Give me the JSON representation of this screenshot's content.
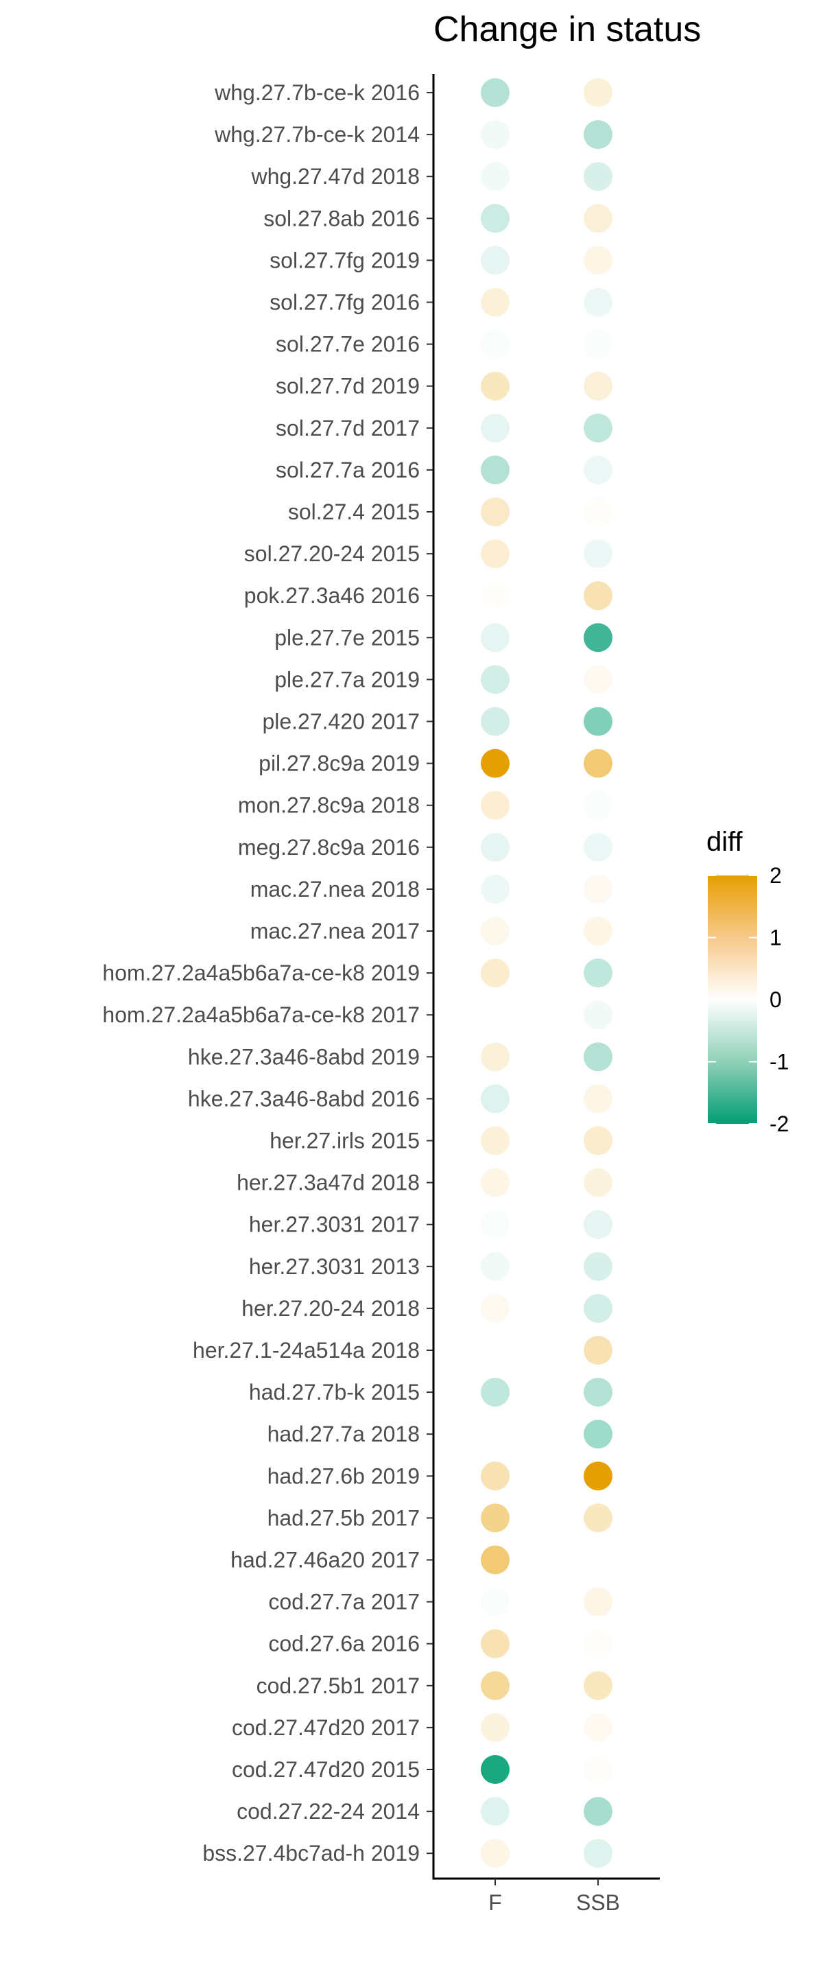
{
  "chart_data": {
    "type": "heatmap",
    "title": "Change in status",
    "xlabel": "",
    "ylabel": "",
    "columns": [
      "F",
      "SSB"
    ],
    "rows": [
      {
        "label": "whg.27.7b-ce-k 2016",
        "F": -0.6,
        "SSB": 0.3
      },
      {
        "label": "whg.27.7b-ce-k 2014",
        "F": -0.1,
        "SSB": -0.6
      },
      {
        "label": "whg.27.47d 2018",
        "F": -0.1,
        "SSB": -0.3
      },
      {
        "label": "sol.27.8ab 2016",
        "F": -0.4,
        "SSB": 0.3
      },
      {
        "label": "sol.27.7fg 2019",
        "F": -0.2,
        "SSB": 0.2
      },
      {
        "label": "sol.27.7fg 2016",
        "F": 0.3,
        "SSB": -0.15
      },
      {
        "label": "sol.27.7e 2016",
        "F": -0.05,
        "SSB": -0.05
      },
      {
        "label": "sol.27.7d 2019",
        "F": 0.5,
        "SSB": 0.3
      },
      {
        "label": "sol.27.7d 2017",
        "F": -0.2,
        "SSB": -0.5
      },
      {
        "label": "sol.27.7a 2016",
        "F": -0.6,
        "SSB": -0.15
      },
      {
        "label": "sol.27.4 2015",
        "F": 0.45,
        "SSB": 0.05
      },
      {
        "label": "sol.27.20-24 2015",
        "F": 0.35,
        "SSB": -0.15
      },
      {
        "label": "pok.27.3a46 2016",
        "F": 0.03,
        "SSB": 0.6
      },
      {
        "label": "ple.27.7e 2015",
        "F": -0.2,
        "SSB": -1.5
      },
      {
        "label": "ple.27.7a 2019",
        "F": -0.35,
        "SSB": 0.1
      },
      {
        "label": "ple.27.420 2017",
        "F": -0.35,
        "SSB": -1.0
      },
      {
        "label": "pil.27.8c9a 2019",
        "F": 2.0,
        "SSB": 1.1
      },
      {
        "label": "mon.27.8c9a 2018",
        "F": 0.35,
        "SSB": -0.05
      },
      {
        "label": "meg.27.8c9a 2016",
        "F": -0.2,
        "SSB": -0.15
      },
      {
        "label": "mac.27.nea 2018",
        "F": -0.15,
        "SSB": 0.1
      },
      {
        "label": "mac.27.nea 2017",
        "F": 0.15,
        "SSB": 0.2
      },
      {
        "label": "hom.27.2a4a5b6a7a-ce-k8 2019",
        "F": 0.4,
        "SSB": -0.5
      },
      {
        "label": "hom.27.2a4a5b6a7a-ce-k8 2017",
        "F": null,
        "SSB": -0.1
      },
      {
        "label": "hke.27.3a46-8abd 2019",
        "F": 0.3,
        "SSB": -0.6
      },
      {
        "label": "hke.27.3a46-8abd 2016",
        "F": -0.25,
        "SSB": 0.2
      },
      {
        "label": "her.27.irls 2015",
        "F": 0.3,
        "SSB": 0.4
      },
      {
        "label": "her.27.3a47d 2018",
        "F": 0.2,
        "SSB": 0.25
      },
      {
        "label": "her.27.3031 2017",
        "F": -0.05,
        "SSB": -0.2
      },
      {
        "label": "her.27.3031 2013",
        "F": -0.1,
        "SSB": -0.3
      },
      {
        "label": "her.27.20-24 2018",
        "F": 0.1,
        "SSB": -0.35
      },
      {
        "label": "her.27.1-24a514a 2018",
        "F": null,
        "SSB": 0.6
      },
      {
        "label": "had.27.7b-k 2015",
        "F": -0.5,
        "SSB": -0.6
      },
      {
        "label": "had.27.7a 2018",
        "F": null,
        "SSB": -0.75
      },
      {
        "label": "had.27.6b 2019",
        "F": 0.6,
        "SSB": 2.0
      },
      {
        "label": "had.27.5b 2017",
        "F": 0.9,
        "SSB": 0.5
      },
      {
        "label": "had.27.46a20 2017",
        "F": 1.1,
        "SSB": null
      },
      {
        "label": "cod.27.7a 2017",
        "F": -0.05,
        "SSB": 0.2
      },
      {
        "label": "cod.27.6a 2016",
        "F": 0.6,
        "SSB": 0.05
      },
      {
        "label": "cod.27.5b1 2017",
        "F": 0.8,
        "SSB": 0.5
      },
      {
        "label": "cod.27.47d20 2017",
        "F": 0.25,
        "SSB": 0.1
      },
      {
        "label": "cod.27.47d20 2015",
        "F": -1.8,
        "SSB": 0.05
      },
      {
        "label": "cod.27.22-24 2014",
        "F": -0.25,
        "SSB": -0.7
      },
      {
        "label": "bss.27.4bc7ad-h 2019",
        "F": 0.2,
        "SSB": -0.25
      }
    ],
    "color_scale": {
      "name": "diff",
      "min": -2,
      "max": 2,
      "ticks": [
        2,
        1,
        0,
        -1,
        -2
      ],
      "low_color": "#009e73",
      "mid_color": "#ffffff",
      "high_color": "#e69f00"
    },
    "grid": false,
    "legend_position": "right"
  }
}
